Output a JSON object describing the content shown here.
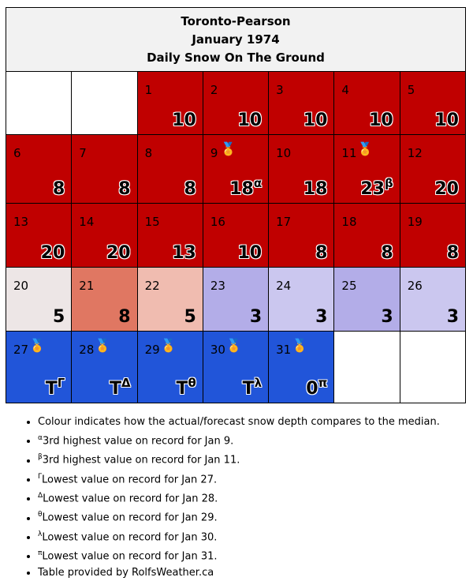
{
  "header": {
    "station": "Toronto-Pearson",
    "month": "January 1974",
    "metric": "Daily Snow On The Ground"
  },
  "colors": {
    "red": "#c00000",
    "salmon": "#e07762",
    "pink": "#f0bcb0",
    "grey": "#ede6e6",
    "lavender": "#b3ade8",
    "lightlav": "#cbc7ef",
    "blue": "#2155d9"
  },
  "weeks": [
    [
      null,
      null,
      {
        "day": "1",
        "value": "10",
        "sup": "",
        "medal": false,
        "color": "#c00000"
      },
      {
        "day": "2",
        "value": "10",
        "sup": "",
        "medal": false,
        "color": "#c00000"
      },
      {
        "day": "3",
        "value": "10",
        "sup": "",
        "medal": false,
        "color": "#c00000"
      },
      {
        "day": "4",
        "value": "10",
        "sup": "",
        "medal": false,
        "color": "#c00000"
      },
      {
        "day": "5",
        "value": "10",
        "sup": "",
        "medal": false,
        "color": "#c00000"
      }
    ],
    [
      {
        "day": "6",
        "value": "8",
        "sup": "",
        "medal": false,
        "color": "#c00000"
      },
      {
        "day": "7",
        "value": "8",
        "sup": "",
        "medal": false,
        "color": "#c00000"
      },
      {
        "day": "8",
        "value": "8",
        "sup": "",
        "medal": false,
        "color": "#c00000"
      },
      {
        "day": "9",
        "value": "18",
        "sup": "α",
        "medal": true,
        "color": "#c00000"
      },
      {
        "day": "10",
        "value": "18",
        "sup": "",
        "medal": false,
        "color": "#c00000"
      },
      {
        "day": "11",
        "value": "23",
        "sup": "β",
        "medal": true,
        "color": "#c00000"
      },
      {
        "day": "12",
        "value": "20",
        "sup": "",
        "medal": false,
        "color": "#c00000"
      }
    ],
    [
      {
        "day": "13",
        "value": "20",
        "sup": "",
        "medal": false,
        "color": "#c00000"
      },
      {
        "day": "14",
        "value": "20",
        "sup": "",
        "medal": false,
        "color": "#c00000"
      },
      {
        "day": "15",
        "value": "13",
        "sup": "",
        "medal": false,
        "color": "#c00000"
      },
      {
        "day": "16",
        "value": "10",
        "sup": "",
        "medal": false,
        "color": "#c00000"
      },
      {
        "day": "17",
        "value": "8",
        "sup": "",
        "medal": false,
        "color": "#c00000"
      },
      {
        "day": "18",
        "value": "8",
        "sup": "",
        "medal": false,
        "color": "#c00000"
      },
      {
        "day": "19",
        "value": "8",
        "sup": "",
        "medal": false,
        "color": "#c00000"
      }
    ],
    [
      {
        "day": "20",
        "value": "5",
        "sup": "",
        "medal": false,
        "color": "#ede6e6"
      },
      {
        "day": "21",
        "value": "8",
        "sup": "",
        "medal": false,
        "color": "#e07762"
      },
      {
        "day": "22",
        "value": "5",
        "sup": "",
        "medal": false,
        "color": "#f0bcb0"
      },
      {
        "day": "23",
        "value": "3",
        "sup": "",
        "medal": false,
        "color": "#b3ade8"
      },
      {
        "day": "24",
        "value": "3",
        "sup": "",
        "medal": false,
        "color": "#cbc7ef"
      },
      {
        "day": "25",
        "value": "3",
        "sup": "",
        "medal": false,
        "color": "#b3ade8"
      },
      {
        "day": "26",
        "value": "3",
        "sup": "",
        "medal": false,
        "color": "#cbc7ef"
      }
    ],
    [
      {
        "day": "27",
        "value": "T",
        "sup": "Γ",
        "medal": true,
        "color": "#2155d9"
      },
      {
        "day": "28",
        "value": "T",
        "sup": "Δ",
        "medal": true,
        "color": "#2155d9"
      },
      {
        "day": "29",
        "value": "T",
        "sup": "θ",
        "medal": true,
        "color": "#2155d9"
      },
      {
        "day": "30",
        "value": "T",
        "sup": "λ",
        "medal": true,
        "color": "#2155d9"
      },
      {
        "day": "31",
        "value": "0",
        "sup": "π",
        "medal": true,
        "color": "#2155d9"
      },
      null,
      null
    ]
  ],
  "notes": [
    {
      "sup": "",
      "text": "Colour indicates how the actual/forecast snow depth compares to the median."
    },
    {
      "sup": "α",
      "text": "3rd highest value on record for Jan 9."
    },
    {
      "sup": "β",
      "text": "3rd highest value on record for Jan 11."
    },
    {
      "sup": "Γ",
      "text": "Lowest value on record for Jan 27."
    },
    {
      "sup": "Δ",
      "text": "Lowest value on record for Jan 28."
    },
    {
      "sup": "θ",
      "text": "Lowest value on record for Jan 29."
    },
    {
      "sup": "λ",
      "text": "Lowest value on record for Jan 30."
    },
    {
      "sup": "π",
      "text": "Lowest value on record for Jan 31."
    },
    {
      "sup": "",
      "text": "Table provided by RolfsWeather.ca"
    }
  ],
  "medal_icon": "medal-icon"
}
